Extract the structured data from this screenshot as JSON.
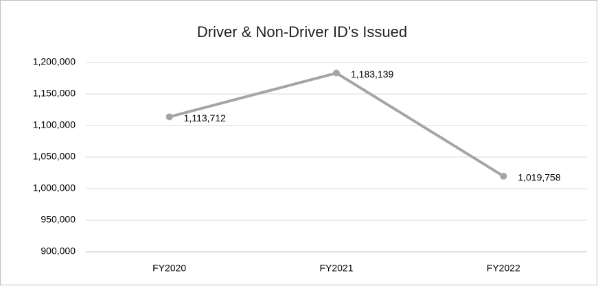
{
  "chart_data": {
    "type": "line",
    "title": "Driver & Non-Driver ID's Issued",
    "categories": [
      "FY2020",
      "FY2021",
      "FY2022"
    ],
    "values": [
      1113712,
      1183139,
      1019758
    ],
    "value_labels": [
      "1,113,712",
      "1,183,139",
      "1,019,758"
    ],
    "color": "#a5a5a5",
    "ylim": [
      900000,
      1200000
    ],
    "yticks": [
      {
        "value": 900000,
        "label": "900,000"
      },
      {
        "value": 950000,
        "label": "950,000"
      },
      {
        "value": 1000000,
        "label": "1,000,000"
      },
      {
        "value": 1050000,
        "label": "1,050,000"
      },
      {
        "value": 1100000,
        "label": "1,100,000"
      },
      {
        "value": 1150000,
        "label": "1,150,000"
      },
      {
        "value": 1200000,
        "label": "1,200,000"
      }
    ],
    "grid": true
  }
}
